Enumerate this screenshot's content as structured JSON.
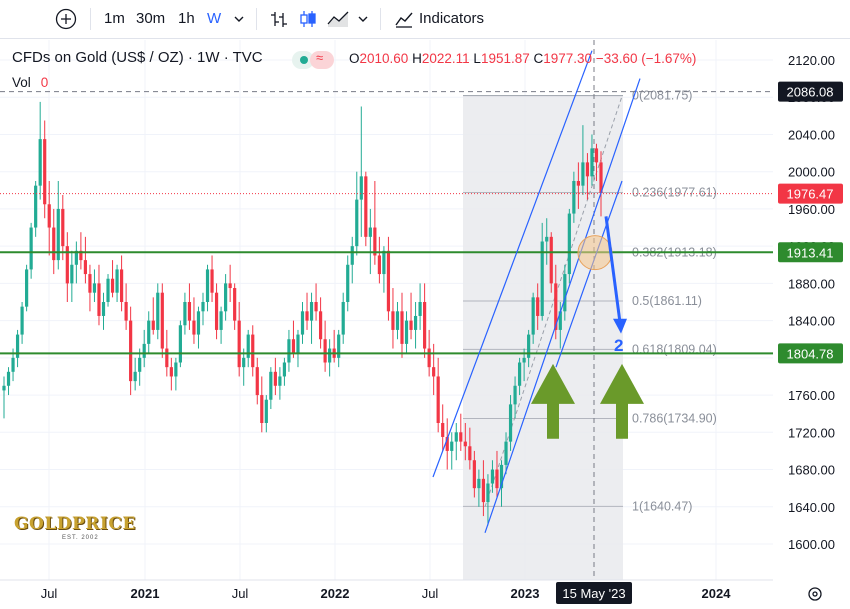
{
  "toolbar": {
    "add_symbol_icon": "plus-circle-icon",
    "intervals": [
      "1m",
      "30m",
      "1h",
      "W"
    ],
    "active_interval": "W",
    "indicators_label": "Indicators"
  },
  "legend": {
    "title": "CFDs on Gold (US$ / OZ) · 1W · TVC",
    "open_label": "O",
    "open": "2010.60",
    "high_label": "H",
    "high": "2022.11",
    "low_label": "L",
    "low": "1951.87",
    "close_label": "C",
    "close": "1977.30",
    "change": "−33.60 (−1.67%)",
    "vol_label": "Vol",
    "vol_value": "0"
  },
  "logo": {
    "text": "GOLDPRICE",
    "sub": "EST. 2002"
  },
  "colors": {
    "up": "#22ab94",
    "down": "#f23645",
    "channel": "#2962ff",
    "support": "#2e8b2e",
    "arrow_green": "#6a9a2a",
    "arrow_blue": "#2962ff",
    "range_shade": "#e9eaed"
  },
  "chart_data": {
    "type": "candlestick",
    "x_tick_labels": [
      "Jul",
      "2021",
      "Jul",
      "2022",
      "Jul",
      "2023",
      "2024"
    ],
    "crosshair_x_label": "15 May '23",
    "y_ticks": [
      1600,
      1640,
      1680,
      1720,
      1760,
      1800,
      1840,
      1880,
      1920,
      1960,
      2000,
      2040,
      2080,
      2120
    ],
    "ylim": [
      1582,
      2135
    ],
    "price_labels": [
      {
        "value": 2086.08,
        "text": "2086.08",
        "kind": "crosshair"
      },
      {
        "value": 1976.47,
        "text": "1976.47",
        "kind": "last"
      },
      {
        "value": 1913.41,
        "text": "1913.41",
        "kind": "support"
      },
      {
        "value": 1804.78,
        "text": "1804.78",
        "kind": "support"
      }
    ],
    "horizontal_lines": [
      1913.41,
      1804.78
    ],
    "fibonacci": [
      {
        "level": "0",
        "price": 2081.75,
        "text": "0(2081.75)"
      },
      {
        "level": "0.236",
        "price": 1977.61,
        "text": "0.236(1977.61)"
      },
      {
        "level": "0.382",
        "price": 1913.18,
        "text": "0.382(1913.18)"
      },
      {
        "level": "0.5",
        "price": 1861.11,
        "text": "0.5(1861.11)"
      },
      {
        "level": "0.618",
        "price": 1809.04,
        "text": "0.618(1809.04)"
      },
      {
        "level": "0.786",
        "price": 1734.9,
        "text": "0.786(1734.90)"
      },
      {
        "level": "1",
        "price": 1640.47,
        "text": "1(1640.47)"
      }
    ],
    "annotation_text": "2",
    "candles_approx": [
      [
        1765,
        1780,
        1735,
        1770
      ],
      [
        1770,
        1790,
        1760,
        1785
      ],
      [
        1785,
        1810,
        1775,
        1800
      ],
      [
        1800,
        1830,
        1790,
        1825
      ],
      [
        1825,
        1860,
        1815,
        1855
      ],
      [
        1855,
        1900,
        1850,
        1895
      ],
      [
        1895,
        1945,
        1885,
        1940
      ],
      [
        1940,
        1990,
        1930,
        1985
      ],
      [
        1985,
        2075,
        1970,
        2035
      ],
      [
        2035,
        2055,
        1950,
        1965
      ],
      [
        1965,
        1990,
        1910,
        1940
      ],
      [
        1940,
        1960,
        1890,
        1905
      ],
      [
        1905,
        1990,
        1895,
        1960
      ],
      [
        1960,
        1975,
        1905,
        1920
      ],
      [
        1920,
        1935,
        1860,
        1880
      ],
      [
        1880,
        1915,
        1860,
        1900
      ],
      [
        1900,
        1925,
        1880,
        1915
      ],
      [
        1915,
        1935,
        1895,
        1905
      ],
      [
        1905,
        1930,
        1880,
        1890
      ],
      [
        1890,
        1900,
        1850,
        1870
      ],
      [
        1870,
        1895,
        1860,
        1880
      ],
      [
        1880,
        1900,
        1835,
        1845
      ],
      [
        1845,
        1870,
        1830,
        1860
      ],
      [
        1860,
        1890,
        1855,
        1885
      ],
      [
        1885,
        1905,
        1865,
        1870
      ],
      [
        1870,
        1900,
        1860,
        1895
      ],
      [
        1895,
        1910,
        1850,
        1860
      ],
      [
        1860,
        1880,
        1830,
        1840
      ],
      [
        1840,
        1855,
        1760,
        1775
      ],
      [
        1775,
        1800,
        1765,
        1785
      ],
      [
        1785,
        1810,
        1770,
        1800
      ],
      [
        1800,
        1830,
        1790,
        1815
      ],
      [
        1815,
        1850,
        1805,
        1840
      ],
      [
        1840,
        1865,
        1825,
        1830
      ],
      [
        1830,
        1880,
        1820,
        1870
      ],
      [
        1870,
        1880,
        1800,
        1810
      ],
      [
        1810,
        1830,
        1780,
        1790
      ],
      [
        1790,
        1800,
        1765,
        1780
      ],
      [
        1780,
        1800,
        1765,
        1795
      ],
      [
        1795,
        1840,
        1790,
        1835
      ],
      [
        1835,
        1870,
        1825,
        1860
      ],
      [
        1860,
        1880,
        1830,
        1840
      ],
      [
        1840,
        1865,
        1815,
        1825
      ],
      [
        1825,
        1855,
        1810,
        1850
      ],
      [
        1850,
        1870,
        1835,
        1860
      ],
      [
        1860,
        1900,
        1850,
        1895
      ],
      [
        1895,
        1910,
        1860,
        1870
      ],
      [
        1870,
        1880,
        1820,
        1830
      ],
      [
        1830,
        1855,
        1815,
        1850
      ],
      [
        1850,
        1890,
        1840,
        1880
      ],
      [
        1880,
        1900,
        1860,
        1875
      ],
      [
        1875,
        1880,
        1830,
        1840
      ],
      [
        1840,
        1860,
        1780,
        1790
      ],
      [
        1790,
        1810,
        1770,
        1800
      ],
      [
        1800,
        1830,
        1790,
        1825
      ],
      [
        1825,
        1835,
        1780,
        1790
      ],
      [
        1790,
        1800,
        1750,
        1760
      ],
      [
        1760,
        1780,
        1720,
        1730
      ],
      [
        1730,
        1760,
        1720,
        1755
      ],
      [
        1755,
        1790,
        1745,
        1785
      ],
      [
        1785,
        1800,
        1760,
        1770
      ],
      [
        1770,
        1790,
        1755,
        1780
      ],
      [
        1780,
        1800,
        1770,
        1795
      ],
      [
        1795,
        1830,
        1785,
        1820
      ],
      [
        1820,
        1840,
        1800,
        1805
      ],
      [
        1805,
        1830,
        1790,
        1825
      ],
      [
        1825,
        1860,
        1815,
        1850
      ],
      [
        1850,
        1870,
        1830,
        1840
      ],
      [
        1840,
        1870,
        1815,
        1860
      ],
      [
        1860,
        1880,
        1840,
        1850
      ],
      [
        1850,
        1865,
        1810,
        1820
      ],
      [
        1820,
        1840,
        1785,
        1795
      ],
      [
        1795,
        1820,
        1780,
        1810
      ],
      [
        1810,
        1830,
        1795,
        1800
      ],
      [
        1800,
        1830,
        1790,
        1825
      ],
      [
        1825,
        1870,
        1815,
        1860
      ],
      [
        1860,
        1910,
        1850,
        1900
      ],
      [
        1900,
        1930,
        1880,
        1920
      ],
      [
        1920,
        2000,
        1910,
        1970
      ],
      [
        1970,
        2070,
        1930,
        1995
      ],
      [
        1995,
        2000,
        1920,
        1930
      ],
      [
        1930,
        1960,
        1890,
        1940
      ],
      [
        1940,
        1990,
        1900,
        1910
      ],
      [
        1910,
        1930,
        1880,
        1890
      ],
      [
        1890,
        1920,
        1870,
        1915
      ],
      [
        1915,
        1930,
        1840,
        1850
      ],
      [
        1850,
        1875,
        1810,
        1830
      ],
      [
        1830,
        1860,
        1820,
        1850
      ],
      [
        1850,
        1870,
        1800,
        1815
      ],
      [
        1815,
        1850,
        1805,
        1840
      ],
      [
        1840,
        1870,
        1820,
        1830
      ],
      [
        1830,
        1860,
        1810,
        1845
      ],
      [
        1845,
        1880,
        1830,
        1860
      ],
      [
        1860,
        1880,
        1800,
        1810
      ],
      [
        1810,
        1830,
        1780,
        1790
      ],
      [
        1790,
        1815,
        1760,
        1780
      ],
      [
        1780,
        1800,
        1720,
        1730
      ],
      [
        1730,
        1750,
        1700,
        1715
      ],
      [
        1715,
        1735,
        1680,
        1700
      ],
      [
        1700,
        1720,
        1680,
        1710
      ],
      [
        1710,
        1730,
        1690,
        1720
      ],
      [
        1720,
        1740,
        1700,
        1710
      ],
      [
        1710,
        1730,
        1690,
        1705
      ],
      [
        1705,
        1725,
        1680,
        1690
      ],
      [
        1690,
        1700,
        1650,
        1660
      ],
      [
        1660,
        1680,
        1640,
        1670
      ],
      [
        1670,
        1690,
        1630,
        1645
      ],
      [
        1645,
        1675,
        1620,
        1665
      ],
      [
        1665,
        1690,
        1655,
        1680
      ],
      [
        1680,
        1700,
        1650,
        1660
      ],
      [
        1660,
        1690,
        1640,
        1685
      ],
      [
        1685,
        1720,
        1675,
        1710
      ],
      [
        1710,
        1760,
        1700,
        1750
      ],
      [
        1750,
        1780,
        1735,
        1770
      ],
      [
        1770,
        1800,
        1760,
        1795
      ],
      [
        1795,
        1810,
        1775,
        1800
      ],
      [
        1800,
        1830,
        1790,
        1825
      ],
      [
        1825,
        1870,
        1815,
        1865
      ],
      [
        1865,
        1880,
        1830,
        1845
      ],
      [
        1845,
        1945,
        1840,
        1925
      ],
      [
        1925,
        1950,
        1900,
        1930
      ],
      [
        1930,
        1935,
        1870,
        1880
      ],
      [
        1880,
        1900,
        1820,
        1830
      ],
      [
        1830,
        1860,
        1810,
        1850
      ],
      [
        1850,
        1900,
        1840,
        1890
      ],
      [
        1890,
        1960,
        1880,
        1955
      ],
      [
        1955,
        2000,
        1945,
        1990
      ],
      [
        1990,
        2010,
        1960,
        1985
      ],
      [
        1985,
        2050,
        1975,
        2010
      ],
      [
        2010,
        2020,
        1970,
        1995
      ],
      [
        1995,
        2040,
        1985,
        2025
      ],
      [
        2025,
        2030,
        1990,
        2010
      ],
      [
        2010,
        2022,
        1952,
        1977
      ]
    ]
  }
}
